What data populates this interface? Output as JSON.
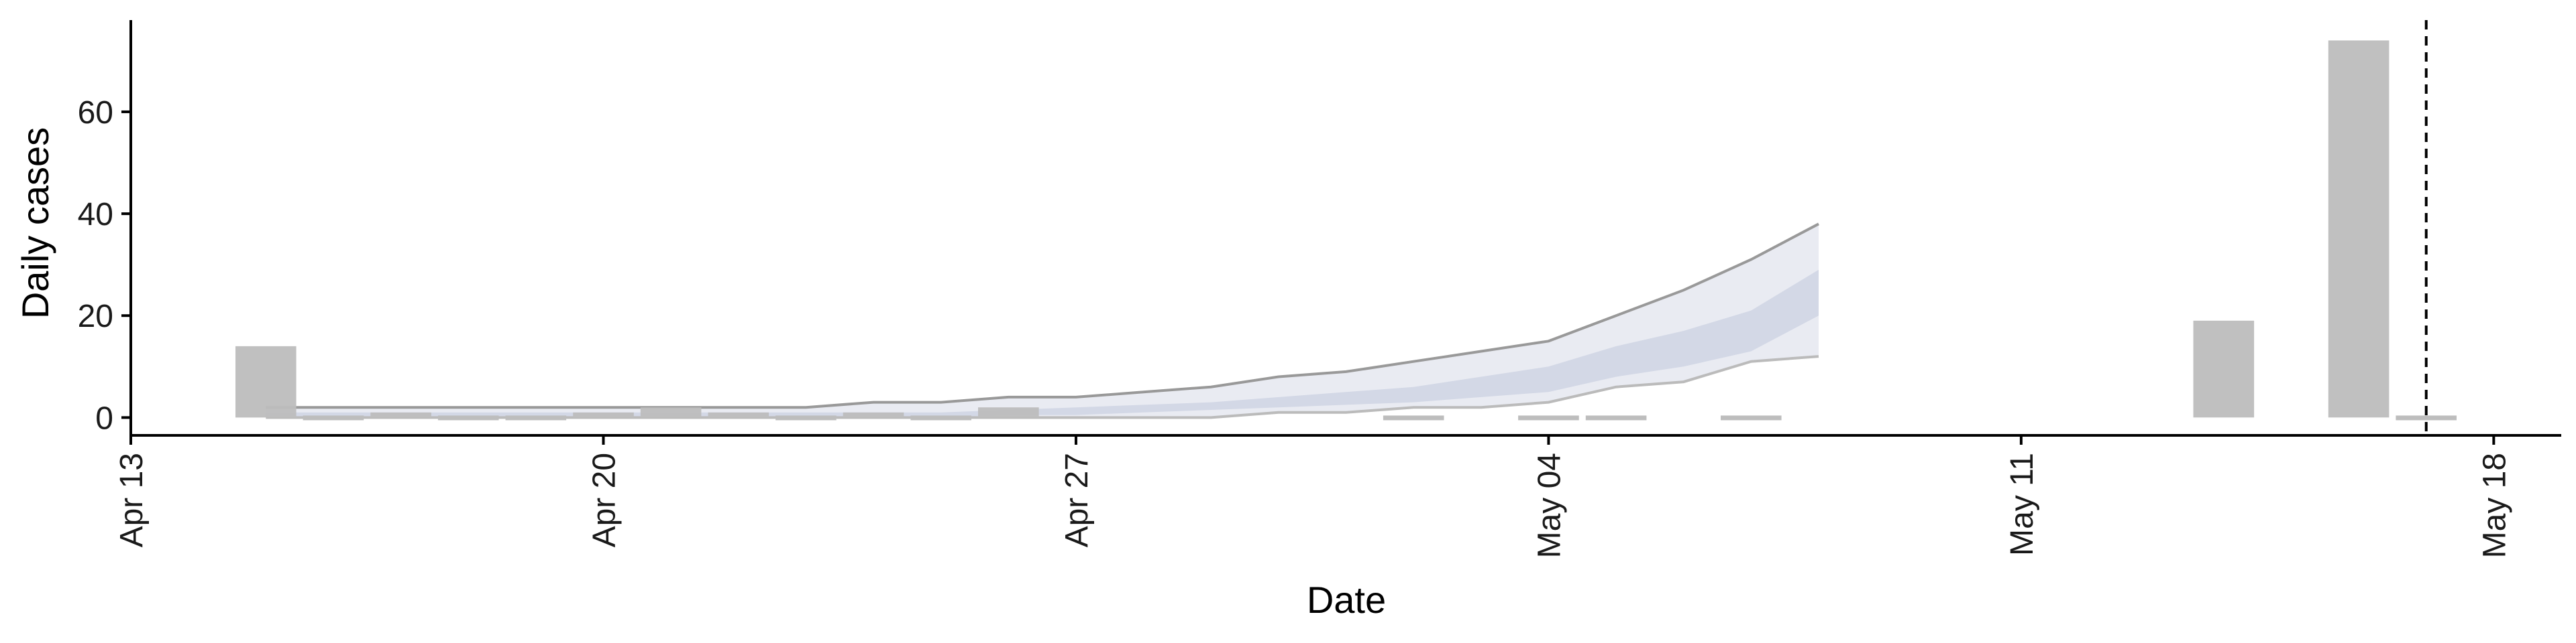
{
  "chart_data": {
    "type": "bar",
    "xlabel": "Date",
    "ylabel": "Daily cases",
    "x_axis": {
      "min": "2020-04-13",
      "max": "2020-05-19",
      "ticks": [
        {
          "date": "2020-04-13",
          "label": "Apr 13"
        },
        {
          "date": "2020-04-20",
          "label": "Apr 20"
        },
        {
          "date": "2020-04-27",
          "label": "Apr 27"
        },
        {
          "date": "2020-05-04",
          "label": "May 04"
        },
        {
          "date": "2020-05-11",
          "label": "May 11"
        },
        {
          "date": "2020-05-18",
          "label": "May 18"
        }
      ]
    },
    "y_axis": {
      "min": -3.5,
      "max": 78,
      "ticks": [
        0,
        20,
        40,
        60
      ]
    },
    "grid": false,
    "legend": "none",
    "bar_color": "#bdbdbd",
    "bars": [
      {
        "date": "2020-04-15",
        "value": 14
      },
      {
        "date": "2020-04-16",
        "value": 0
      },
      {
        "date": "2020-04-17",
        "value": 1
      },
      {
        "date": "2020-04-18",
        "value": 0
      },
      {
        "date": "2020-04-19",
        "value": 0
      },
      {
        "date": "2020-04-20",
        "value": 1
      },
      {
        "date": "2020-04-21",
        "value": 2
      },
      {
        "date": "2020-04-22",
        "value": 1
      },
      {
        "date": "2020-04-23",
        "value": 0
      },
      {
        "date": "2020-04-24",
        "value": 1
      },
      {
        "date": "2020-04-25",
        "value": 0
      },
      {
        "date": "2020-04-26",
        "value": 2
      },
      {
        "date": "2020-05-02",
        "value": 0
      },
      {
        "date": "2020-05-04",
        "value": 0
      },
      {
        "date": "2020-05-05",
        "value": 0
      },
      {
        "date": "2020-05-07",
        "value": 0
      },
      {
        "date": "2020-05-14",
        "value": 19
      },
      {
        "date": "2020-05-16",
        "value": 74
      },
      {
        "date": "2020-05-17",
        "value": 0
      }
    ],
    "forecast": {
      "dates": [
        "2020-04-15",
        "2020-04-16",
        "2020-04-17",
        "2020-04-18",
        "2020-04-19",
        "2020-04-20",
        "2020-04-21",
        "2020-04-22",
        "2020-04-23",
        "2020-04-24",
        "2020-04-25",
        "2020-04-26",
        "2020-04-27",
        "2020-04-28",
        "2020-04-29",
        "2020-04-30",
        "2020-05-01",
        "2020-05-02",
        "2020-05-03",
        "2020-05-04",
        "2020-05-05",
        "2020-05-06",
        "2020-05-07",
        "2020-05-08"
      ],
      "upper_90": [
        2,
        2,
        2,
        2,
        2,
        2,
        2,
        2,
        2,
        3,
        3,
        4,
        4,
        5,
        6,
        8,
        9,
        11,
        13,
        15,
        20,
        25,
        31,
        38
      ],
      "upper_50": [
        1,
        1,
        1,
        1,
        1,
        1,
        1,
        1,
        1,
        1,
        1,
        1.5,
        2,
        2.5,
        3,
        4,
        5,
        6,
        8,
        10,
        14,
        17,
        21,
        29
      ],
      "lower_50": [
        0,
        0,
        0,
        0,
        0,
        0,
        0,
        0,
        0,
        0,
        0,
        0.5,
        0.5,
        1,
        1.5,
        2,
        2.5,
        3,
        4,
        5,
        8,
        10,
        13,
        20
      ],
      "lower_90": [
        0,
        0,
        0,
        0,
        0,
        0,
        0,
        0,
        0,
        0,
        0,
        0,
        0,
        0,
        0,
        1,
        1,
        2,
        2,
        3,
        6,
        7,
        11,
        12
      ],
      "outer_color": "#e9ebf2",
      "inner_color": "#d3d8e6",
      "upper_line_color": "#999999",
      "lower_line_color": "#bbbbbb"
    },
    "reference_line": {
      "date": "2020-05-17",
      "style": "dashed"
    }
  }
}
